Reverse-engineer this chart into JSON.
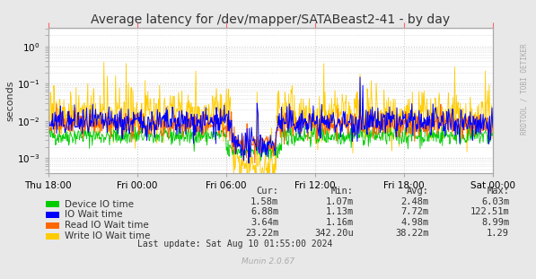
{
  "title": "Average latency for /dev/mapper/SATABeast2-41 - by day",
  "ylabel": "seconds",
  "right_label": "RRDTOOL / TOBI OETIKER",
  "footer": "Munin 2.0.67",
  "last_update": "Last update: Sat Aug 10 01:55:00 2024",
  "bg_color": "#e8e8e8",
  "plot_bg_color": "#ffffff",
  "grid_color": "#cccccc",
  "border_color": "#aaaaaa",
  "title_color": "#333333",
  "xtick_labels": [
    "Thu 18:00",
    "Fri 00:00",
    "Fri 06:00",
    "Fri 12:00",
    "Fri 18:00",
    "Sat 00:00"
  ],
  "ylim_log": [
    -3.3,
    0.5
  ],
  "legend_items": [
    {
      "label": "Device IO time",
      "color": "#00cc00"
    },
    {
      "label": "IO Wait time",
      "color": "#0000ff"
    },
    {
      "label": "Read IO Wait time",
      "color": "#ff6600"
    },
    {
      "label": "Write IO Wait time",
      "color": "#ffcc00"
    }
  ],
  "stats": {
    "headers": [
      "Cur:",
      "Min:",
      "Avg:",
      "Max:"
    ],
    "rows": [
      [
        "1.58m",
        "1.07m",
        "2.48m",
        "6.03m"
      ],
      [
        "6.88m",
        "1.13m",
        "7.72m",
        "122.51m"
      ],
      [
        "3.64m",
        "1.16m",
        "4.98m",
        "8.99m"
      ],
      [
        "23.22m",
        "342.20u",
        "38.22m",
        "1.29"
      ]
    ]
  }
}
